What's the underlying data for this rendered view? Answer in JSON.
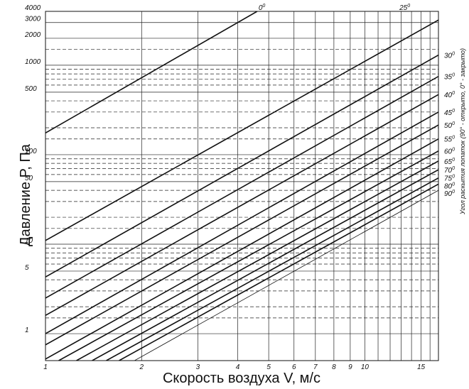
{
  "chart_data": {
    "type": "line",
    "x_scale": "log",
    "y_scale": "log",
    "xlim": [
      1,
      17
    ],
    "ylim": [
      0.5,
      4000
    ],
    "grid": true,
    "xlabel": "Скорость воздуха V, м/с",
    "ylabel": "Давление  P, Па",
    "right_label": "Угол раскытия лопаток (90° - открыто, 0° - закрыто)",
    "x_ticks": [
      {
        "v": 1,
        "label": "1"
      },
      {
        "v": 2,
        "label": "2"
      },
      {
        "v": 3,
        "label": "3"
      },
      {
        "v": 4,
        "label": "4"
      },
      {
        "v": 5,
        "label": "5"
      },
      {
        "v": 6,
        "label": "6"
      },
      {
        "v": 7,
        "label": "7"
      },
      {
        "v": 8,
        "label": "8"
      },
      {
        "v": 9,
        "label": "9"
      },
      {
        "v": 10,
        "label": "10"
      },
      {
        "v": 15,
        "label": "15"
      }
    ],
    "y_ticks": [
      {
        "v": 1,
        "label": "1"
      },
      {
        "v": 5,
        "label": "5"
      },
      {
        "v": 10,
        "label": "10"
      },
      {
        "v": 50,
        "label": "50"
      },
      {
        "v": 100,
        "label": "100"
      },
      {
        "v": 500,
        "label": "500"
      },
      {
        "v": 1000,
        "label": "1000"
      },
      {
        "v": 2000,
        "label": "2000"
      },
      {
        "v": 3000,
        "label": "3000"
      },
      {
        "v": 4000,
        "label": "4000"
      }
    ],
    "series": [
      {
        "name": "0",
        "values": [
          {
            "x": 1,
            "y": 175
          },
          {
            "x": 4.6,
            "y": 4000
          }
        ]
      },
      {
        "name": "25",
        "values": [
          {
            "x": 1,
            "y": 11
          },
          {
            "x": 17,
            "y": 3200
          }
        ]
      },
      {
        "name": "30",
        "values": [
          {
            "x": 1,
            "y": 4.3
          },
          {
            "x": 17,
            "y": 1300
          }
        ]
      },
      {
        "name": "35",
        "values": [
          {
            "x": 1,
            "y": 2.5
          },
          {
            "x": 17,
            "y": 750
          }
        ]
      },
      {
        "name": "40",
        "values": [
          {
            "x": 1,
            "y": 1.6
          },
          {
            "x": 17,
            "y": 470
          }
        ]
      },
      {
        "name": "45",
        "values": [
          {
            "x": 1,
            "y": 1.0
          },
          {
            "x": 17,
            "y": 300
          }
        ]
      },
      {
        "name": "50",
        "values": [
          {
            "x": 1,
            "y": 0.75
          },
          {
            "x": 17,
            "y": 215
          }
        ]
      },
      {
        "name": "55",
        "values": [
          {
            "x": 1,
            "y": 0.52
          },
          {
            "x": 17,
            "y": 150
          }
        ]
      },
      {
        "name": "60",
        "values": [
          {
            "x": 1.1,
            "y": 0.5
          },
          {
            "x": 17,
            "y": 110
          }
        ]
      },
      {
        "name": "65",
        "values": [
          {
            "x": 1.25,
            "y": 0.5
          },
          {
            "x": 17,
            "y": 85
          }
        ]
      },
      {
        "name": "70",
        "values": [
          {
            "x": 1.4,
            "y": 0.5
          },
          {
            "x": 17,
            "y": 68
          }
        ]
      },
      {
        "name": "75",
        "values": [
          {
            "x": 1.55,
            "y": 0.5
          },
          {
            "x": 17,
            "y": 55
          }
        ]
      },
      {
        "name": "80",
        "values": [
          {
            "x": 1.7,
            "y": 0.5
          },
          {
            "x": 17,
            "y": 47
          }
        ]
      },
      {
        "name": "90",
        "values": [
          {
            "x": 1.9,
            "y": 0.5
          },
          {
            "x": 17,
            "y": 40
          }
        ]
      }
    ],
    "curve_labels": [
      {
        "text": "0",
        "sup": "0",
        "pos": "top"
      },
      {
        "text": "25",
        "sup": "0",
        "pos": "top"
      },
      {
        "text": "30",
        "sup": "0",
        "pos": "right"
      },
      {
        "text": "35",
        "sup": "0",
        "pos": "right"
      },
      {
        "text": "40",
        "sup": "0",
        "pos": "right"
      },
      {
        "text": "45",
        "sup": "0",
        "pos": "right"
      },
      {
        "text": "50",
        "sup": "0",
        "pos": "right"
      },
      {
        "text": "55",
        "sup": "0",
        "pos": "right"
      },
      {
        "text": "60",
        "sup": "0",
        "pos": "right"
      },
      {
        "text": "65",
        "sup": "0",
        "pos": "right"
      },
      {
        "text": "70",
        "sup": "0",
        "pos": "right"
      },
      {
        "text": "75",
        "sup": "0",
        "pos": "right"
      },
      {
        "text": "80",
        "sup": "0",
        "pos": "right"
      },
      {
        "text": "90",
        "sup": "0",
        "pos": "right"
      }
    ],
    "dashed_y": [
      1.5,
      2,
      3,
      4,
      6,
      7,
      8,
      9,
      15,
      20,
      30,
      40,
      60,
      70,
      80,
      90,
      150,
      200,
      300,
      400,
      600,
      700,
      800,
      900,
      1500
    ],
    "colors": {
      "line": "#111111",
      "grid": "#222222"
    }
  }
}
